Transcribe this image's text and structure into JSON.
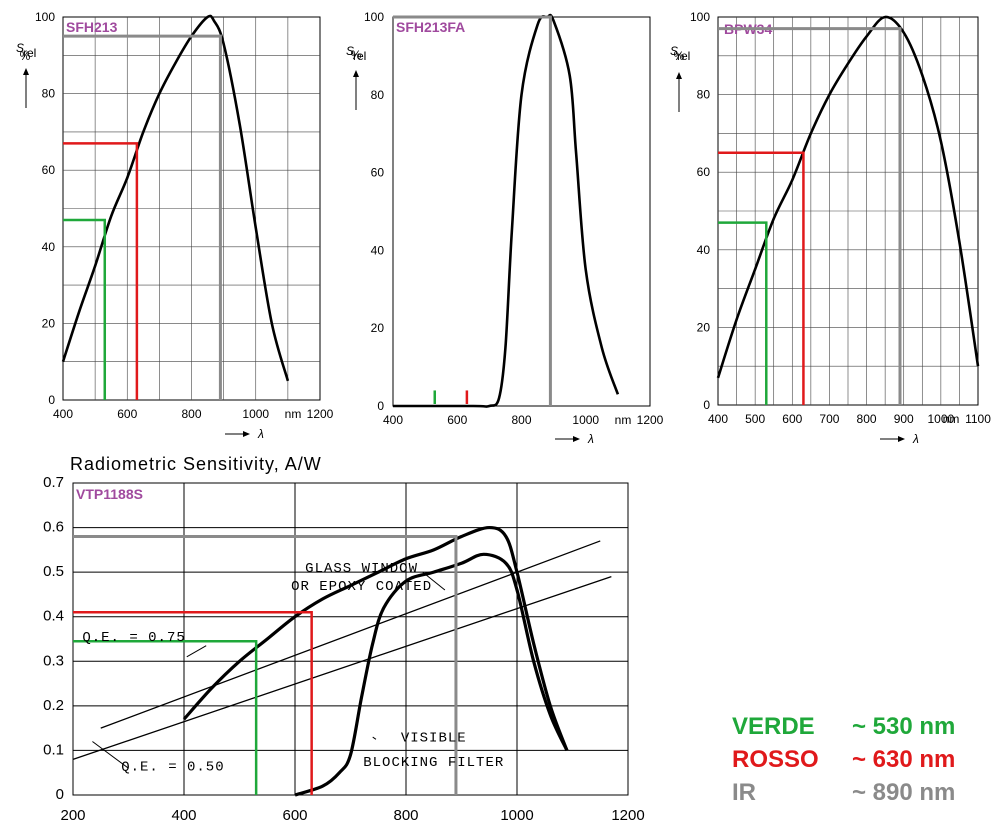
{
  "colors": {
    "green": "#1fa83a",
    "red": "#e0191b",
    "gray": "#8a8a8a",
    "purple": "#a04a9e"
  },
  "legend": [
    {
      "name": "VERDE",
      "value": "~ 530 nm",
      "color": "#1fa83a"
    },
    {
      "name": "ROSSO",
      "value": "~ 630 nm",
      "color": "#e0191b"
    },
    {
      "name": "IR",
      "value": "~ 890 nm",
      "color": "#8a8a8a"
    }
  ],
  "chart_data": [
    {
      "type": "line",
      "title": "SFH213",
      "ylabel_main": "S",
      "ylabel_sub": "rel",
      "ylabel_unit": "%",
      "xlabel_unit": "nm",
      "xlabel_symbol": "λ",
      "xlim": [
        400,
        1200
      ],
      "ylim": [
        0,
        100
      ],
      "xticks": [
        400,
        600,
        800,
        1000,
        1200
      ],
      "xtick_labels": [
        "400",
        "600",
        "800",
        "1000",
        "1200"
      ],
      "yticks": [
        0,
        20,
        40,
        60,
        80,
        100
      ],
      "grid": true,
      "series": [
        {
          "x": [
            400,
            450,
            500,
            550,
            600,
            650,
            700,
            750,
            800,
            850,
            870,
            900,
            950,
            1000,
            1050,
            1100
          ],
          "y": [
            10,
            23,
            35,
            48,
            58,
            70,
            80,
            88,
            95,
            100,
            99,
            93,
            72,
            45,
            20,
            5
          ]
        }
      ],
      "markers": [
        {
          "label": "green",
          "x": 530,
          "y": 47
        },
        {
          "label": "red",
          "x": 630,
          "y": 67
        },
        {
          "label": "gray",
          "x": 890,
          "y": 95
        }
      ]
    },
    {
      "type": "line",
      "title": "SFH213FA",
      "ylabel_main": "S",
      "ylabel_sub": "rel",
      "ylabel_unit": "%",
      "xlabel_unit": "nm",
      "xlabel_symbol": "λ",
      "xlim": [
        400,
        1200
      ],
      "ylim": [
        0,
        100
      ],
      "xticks": [
        400,
        600,
        800,
        1000,
        1200
      ],
      "xtick_labels": [
        "400",
        "600",
        "800",
        "1000",
        "1200"
      ],
      "yticks": [
        0,
        20,
        40,
        60,
        80,
        100
      ],
      "grid": false,
      "series": [
        {
          "x": [
            400,
            650,
            700,
            730,
            750,
            770,
            800,
            850,
            880,
            900,
            950,
            970,
            1000,
            1050,
            1100
          ],
          "y": [
            0,
            0,
            0,
            2,
            15,
            45,
            80,
            98,
            100,
            99,
            85,
            65,
            35,
            15,
            3
          ]
        }
      ],
      "markers": [
        {
          "label": "green",
          "x": 530,
          "y": 4
        },
        {
          "label": "red",
          "x": 630,
          "y": 4
        },
        {
          "label": "gray",
          "x": 890,
          "y": 100
        }
      ]
    },
    {
      "type": "line",
      "title": "BPW34",
      "ylabel_main": "S",
      "ylabel_sub": "rel",
      "ylabel_unit": "%",
      "xlabel_unit": "nm",
      "xlabel_symbol": "λ",
      "xlim": [
        400,
        1100
      ],
      "ylim": [
        0,
        100
      ],
      "xticks": [
        400,
        500,
        600,
        700,
        800,
        900,
        1000,
        1100
      ],
      "xtick_labels": [
        "400",
        "500",
        "600",
        "700",
        "800",
        "900",
        "1000",
        "1100"
      ],
      "yticks": [
        0,
        20,
        40,
        60,
        80,
        100
      ],
      "grid": true,
      "series": [
        {
          "x": [
            400,
            450,
            500,
            550,
            600,
            650,
            700,
            750,
            800,
            850,
            900,
            950,
            1000,
            1050,
            1100
          ],
          "y": [
            7,
            22,
            35,
            48,
            58,
            70,
            80,
            88,
            95,
            100,
            96,
            85,
            68,
            42,
            10
          ]
        }
      ],
      "markers": [
        {
          "label": "green",
          "x": 530,
          "y": 47
        },
        {
          "label": "red",
          "x": 630,
          "y": 65
        },
        {
          "label": "gray",
          "x": 890,
          "y": 97
        }
      ]
    },
    {
      "type": "line",
      "title": "Radiometric Sensitivity, A/W",
      "tag": "VTP1188S",
      "xlim": [
        200,
        1200
      ],
      "ylim": [
        0,
        0.7
      ],
      "xticks": [
        200,
        400,
        600,
        800,
        1000,
        1200
      ],
      "xtick_labels": [
        "200",
        "400",
        "600",
        "800",
        "1000",
        "1200"
      ],
      "yticks": [
        0,
        0.1,
        0.2,
        0.3,
        0.4,
        0.5,
        0.6,
        0.7
      ],
      "ytick_labels": [
        "0",
        "0.1",
        "0.2",
        "0.3",
        "0.4",
        "0.5",
        "0.6",
        "0.7"
      ],
      "grid": true,
      "series": [
        {
          "x": [
            400,
            450,
            500,
            550,
            600,
            650,
            700,
            750,
            800,
            850,
            900,
            950,
            980,
            1000,
            1030,
            1060,
            1090
          ],
          "y": [
            0.17,
            0.24,
            0.3,
            0.35,
            0.4,
            0.44,
            0.47,
            0.5,
            0.53,
            0.55,
            0.58,
            0.6,
            0.58,
            0.5,
            0.34,
            0.2,
            0.1
          ]
        },
        {
          "x": [
            600,
            650,
            680,
            700,
            720,
            740,
            760,
            800,
            850,
            900,
            940,
            980,
            1000,
            1030,
            1060,
            1090
          ],
          "y": [
            0,
            0.02,
            0.05,
            0.09,
            0.22,
            0.34,
            0.42,
            0.48,
            0.5,
            0.52,
            0.54,
            0.52,
            0.46,
            0.3,
            0.18,
            0.1
          ]
        },
        {
          "x": [
            250,
            1150
          ],
          "y": [
            0.15,
            0.57
          ]
        },
        {
          "x": [
            200,
            1170
          ],
          "y": [
            0.08,
            0.49
          ]
        }
      ],
      "annotations": [
        {
          "text": "GLASS WINDOW",
          "x": 720,
          "y": 0.5
        },
        {
          "text": "OR EPOXY COATED",
          "x": 720,
          "y": 0.46
        },
        {
          "text": "Q.E. = 0.75",
          "x": 310,
          "y": 0.345
        },
        {
          "text": "Q.E. = 0.50",
          "x": 380,
          "y": 0.055
        },
        {
          "text": "VISIBLE",
          "x": 850,
          "y": 0.12
        },
        {
          "text": "BLOCKING FILTER",
          "x": 850,
          "y": 0.065
        }
      ],
      "markers": [
        {
          "label": "green",
          "x": 530,
          "y": 0.345
        },
        {
          "label": "red",
          "x": 630,
          "y": 0.41
        },
        {
          "label": "gray",
          "x": 890,
          "y": 0.58
        }
      ]
    }
  ]
}
